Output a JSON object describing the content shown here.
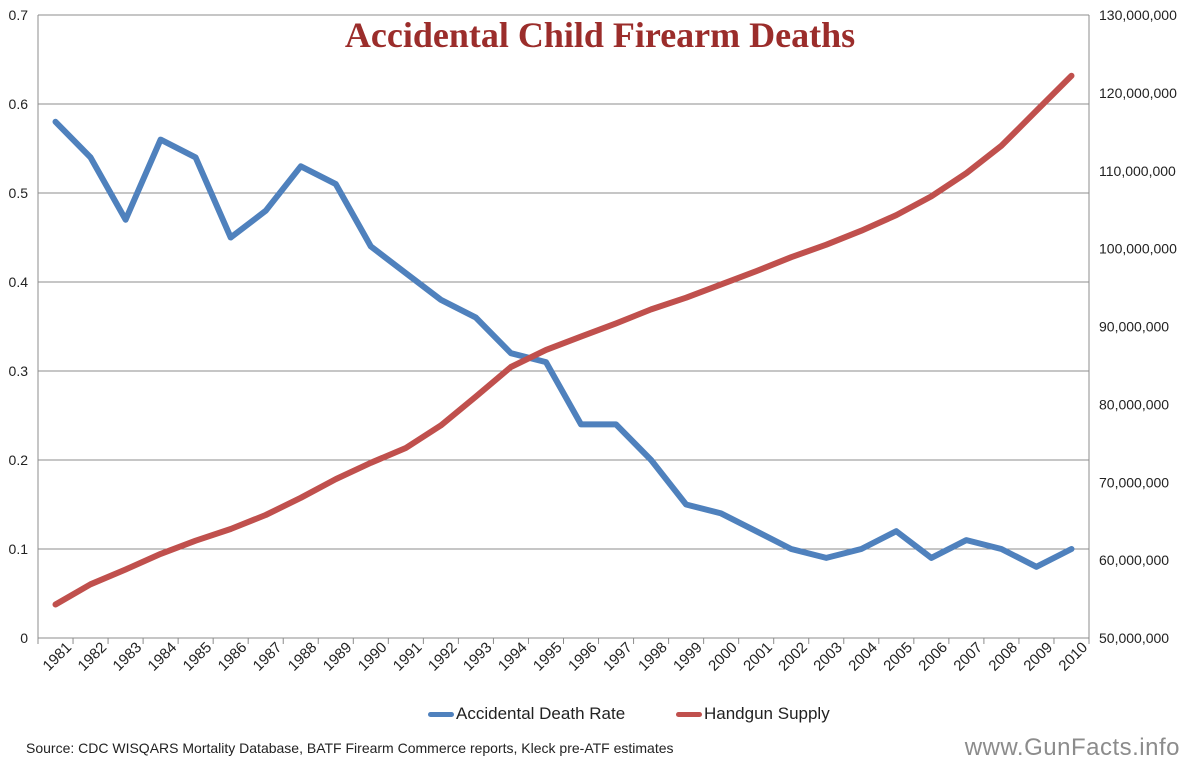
{
  "chart_data": {
    "type": "line",
    "title": "Accidental Child Firearm Deaths",
    "categories": [
      "1981",
      "1982",
      "1983",
      "1984",
      "1985",
      "1986",
      "1987",
      "1988",
      "1989",
      "1990",
      "1991",
      "1992",
      "1993",
      "1994",
      "1995",
      "1996",
      "1997",
      "1998",
      "1999",
      "2000",
      "2001",
      "2002",
      "2003",
      "2004",
      "2005",
      "2006",
      "2007",
      "2008",
      "2009",
      "2010"
    ],
    "left_axis": {
      "min": 0,
      "max": 0.7,
      "ticks": [
        {
          "value": 0,
          "label": "0"
        },
        {
          "value": 0.1,
          "label": "0.1"
        },
        {
          "value": 0.2,
          "label": "0.2"
        },
        {
          "value": 0.3,
          "label": "0.3"
        },
        {
          "value": 0.4,
          "label": "0.4"
        },
        {
          "value": 0.5,
          "label": "0.5"
        },
        {
          "value": 0.6,
          "label": "0.6"
        },
        {
          "value": 0.7,
          "label": "0.7"
        }
      ]
    },
    "right_axis": {
      "min": 50000000,
      "max": 130000000,
      "ticks": [
        {
          "value": 50000000,
          "label": "50,000,000"
        },
        {
          "value": 60000000,
          "label": "60,000,000"
        },
        {
          "value": 70000000,
          "label": "70,000,000"
        },
        {
          "value": 80000000,
          "label": "80,000,000"
        },
        {
          "value": 90000000,
          "label": "90,000,000"
        },
        {
          "value": 100000000,
          "label": "100,000,000"
        },
        {
          "value": 110000000,
          "label": "110,000,000"
        },
        {
          "value": 120000000,
          "label": "120,000,000"
        },
        {
          "value": 130000000,
          "label": "130,000,000"
        }
      ]
    },
    "series": [
      {
        "name": "Accidental Death Rate",
        "axis": "left",
        "color": "#4f81bd",
        "values": [
          0.58,
          0.54,
          0.47,
          0.56,
          0.54,
          0.45,
          0.48,
          0.53,
          0.51,
          0.44,
          0.41,
          0.38,
          0.36,
          0.32,
          0.31,
          0.24,
          0.24,
          0.2,
          0.15,
          0.14,
          0.12,
          0.1,
          0.09,
          0.1,
          0.12,
          0.09,
          0.11,
          0.1,
          0.08,
          0.1
        ]
      },
      {
        "name": "Handgun Supply",
        "axis": "right",
        "color": "#c0504d",
        "values": [
          54300000,
          56900000,
          58800000,
          60800000,
          62500000,
          64000000,
          65800000,
          68000000,
          70400000,
          72500000,
          74400000,
          77300000,
          81000000,
          84800000,
          87000000,
          88700000,
          90400000,
          92200000,
          93700000,
          95400000,
          97100000,
          98900000,
          100500000,
          102300000,
          104300000,
          106700000,
          109700000,
          113200000,
          117700000,
          122200000
        ]
      }
    ],
    "legend_position": "bottom"
  },
  "footer": {
    "source": "Source: CDC WISQARS Mortality Database, BATF Firearm Commerce reports, Kleck pre-ATF estimates",
    "brand": "www.GunFacts.info"
  }
}
